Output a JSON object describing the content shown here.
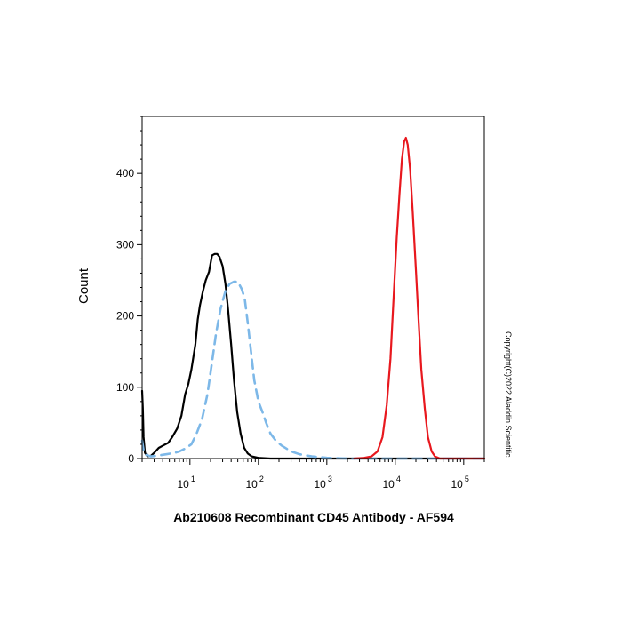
{
  "chart_data": {
    "type": "line",
    "title": "",
    "xlabel": "Ab210608 Recombinant CD45 Antibody - AF594",
    "ylabel": "Count",
    "x_scale": "log",
    "xlim": [
      2,
      200000
    ],
    "ylim": [
      0,
      480
    ],
    "y_ticks": [
      0,
      100,
      200,
      300,
      400
    ],
    "y_tick_labels": [
      "0",
      "100",
      "200",
      "300",
      "400"
    ],
    "x_ticks": [
      {
        "value": 10,
        "base": "10",
        "exp": "1"
      },
      {
        "value": 100,
        "base": "10",
        "exp": "2"
      },
      {
        "value": 1000,
        "base": "10",
        "exp": "3"
      },
      {
        "value": 10000,
        "base": "10",
        "exp": "4"
      },
      {
        "value": 100000,
        "base": "10",
        "exp": "5"
      }
    ],
    "grid": false,
    "series": [
      {
        "color": "#000000",
        "style": "solid",
        "points": [
          [
            2.0,
            95
          ],
          [
            2.05,
            70
          ],
          [
            2.1,
            30
          ],
          [
            2.2,
            8
          ],
          [
            2.4,
            3
          ],
          [
            2.7,
            4
          ],
          [
            3.0,
            8
          ],
          [
            3.5,
            15
          ],
          [
            4.0,
            18
          ],
          [
            4.8,
            22
          ],
          [
            5.5,
            30
          ],
          [
            6.5,
            42
          ],
          [
            7.5,
            60
          ],
          [
            8.5,
            90
          ],
          [
            9.5,
            105
          ],
          [
            10.5,
            125
          ],
          [
            12,
            160
          ],
          [
            13,
            195
          ],
          [
            14,
            215
          ],
          [
            15.5,
            235
          ],
          [
            17,
            250
          ],
          [
            19,
            262
          ],
          [
            21,
            285
          ],
          [
            23,
            287
          ],
          [
            25,
            287
          ],
          [
            27,
            283
          ],
          [
            30,
            270
          ],
          [
            33,
            245
          ],
          [
            36,
            210
          ],
          [
            40,
            160
          ],
          [
            44,
            110
          ],
          [
            49,
            65
          ],
          [
            55,
            35
          ],
          [
            62,
            15
          ],
          [
            70,
            7
          ],
          [
            80,
            3
          ],
          [
            100,
            1
          ],
          [
            150,
            0
          ],
          [
            200000,
            0
          ]
        ]
      },
      {
        "color": "#7DB8E8",
        "style": "dashed",
        "points": [
          [
            2.0,
            25
          ],
          [
            2.1,
            12
          ],
          [
            2.3,
            5
          ],
          [
            2.7,
            3
          ],
          [
            3.3,
            4
          ],
          [
            4.5,
            6
          ],
          [
            6,
            8
          ],
          [
            7,
            10
          ],
          [
            8.5,
            14
          ],
          [
            10.5,
            20
          ],
          [
            12.5,
            35
          ],
          [
            15,
            55
          ],
          [
            18,
            90
          ],
          [
            21,
            135
          ],
          [
            24,
            175
          ],
          [
            28,
            210
          ],
          [
            33,
            235
          ],
          [
            38,
            245
          ],
          [
            44,
            248
          ],
          [
            50,
            248
          ],
          [
            57,
            238
          ],
          [
            63,
            225
          ],
          [
            70,
            190
          ],
          [
            78,
            150
          ],
          [
            87,
            110
          ],
          [
            100,
            80
          ],
          [
            115,
            65
          ],
          [
            130,
            50
          ],
          [
            150,
            35
          ],
          [
            180,
            25
          ],
          [
            220,
            18
          ],
          [
            300,
            10
          ],
          [
            400,
            6
          ],
          [
            600,
            3
          ],
          [
            1000,
            1
          ],
          [
            2000,
            0
          ],
          [
            4000,
            0
          ],
          [
            10000,
            0
          ],
          [
            200000,
            0
          ]
        ]
      },
      {
        "color": "#E8181E",
        "style": "solid",
        "points": [
          [
            2500,
            0
          ],
          [
            3500,
            1
          ],
          [
            4500,
            3
          ],
          [
            5500,
            10
          ],
          [
            6500,
            30
          ],
          [
            7500,
            75
          ],
          [
            8500,
            140
          ],
          [
            9500,
            230
          ],
          [
            10500,
            310
          ],
          [
            11500,
            370
          ],
          [
            12500,
            420
          ],
          [
            13500,
            445
          ],
          [
            14300,
            450
          ],
          [
            15200,
            440
          ],
          [
            16500,
            405
          ],
          [
            18000,
            345
          ],
          [
            20000,
            265
          ],
          [
            22000,
            190
          ],
          [
            24000,
            125
          ],
          [
            27000,
            70
          ],
          [
            30000,
            30
          ],
          [
            34000,
            10
          ],
          [
            38000,
            3
          ],
          [
            45000,
            0
          ],
          [
            200000,
            0
          ]
        ]
      }
    ]
  },
  "copyright": "Copyright(C)2022 Aladdin Scientific."
}
